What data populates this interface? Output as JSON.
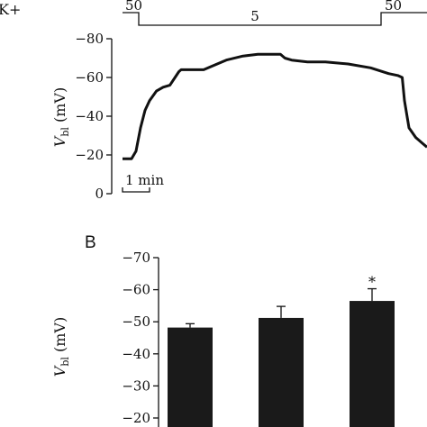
{
  "figure": {
    "panel_b": "B",
    "k_label": "K+",
    "protocol": {
      "left": "50",
      "middle": "5",
      "right": "50"
    },
    "scale_bar": "1 min"
  },
  "chart_data": [
    {
      "type": "line",
      "panel": "A",
      "ylabel": "Vbl (mV)",
      "ylim": [
        -80,
        0
      ],
      "yticks": [
        0,
        -20,
        -40,
        -60,
        -80
      ],
      "ytick_labels": [
        "0",
        "−20",
        "−40",
        "−60",
        "−80"
      ],
      "x_unit": "min",
      "xlim": [
        0,
        13.5
      ],
      "series": [
        {
          "x": [
            0,
            0.4,
            0.6,
            0.8,
            1.0,
            1.2,
            1.5,
            1.8,
            2.1,
            2.5,
            2.6,
            2.8,
            3.0,
            3.6,
            4.0,
            4.6,
            5.3,
            6.0,
            6.6,
            7.0,
            7.2,
            7.5,
            8.2,
            9.0,
            10.0,
            11.0,
            11.8,
            12.2,
            12.4,
            12.5,
            12.7,
            13.0,
            13.3,
            13.5
          ],
          "y": [
            -18,
            -18,
            -22,
            -34,
            -43,
            -48,
            -53,
            -55,
            -56,
            -63,
            -64,
            -64,
            -64,
            -64,
            -66,
            -69,
            -71,
            -72,
            -72,
            -72,
            -70,
            -69,
            -68,
            -68,
            -67,
            -65,
            -62,
            -61,
            -60,
            -48,
            -34,
            -29,
            -26,
            -24
          ]
        }
      ]
    },
    {
      "type": "bar",
      "panel": "B",
      "ylabel": "Vbl (mV)",
      "ylim": [
        -20,
        -70
      ],
      "yticks": [
        -70,
        -60,
        -50,
        -40,
        -30,
        -20
      ],
      "ytick_labels": [
        "−70",
        "−60",
        "−50",
        "−40",
        "−30",
        "−20"
      ],
      "values": [
        -48.2,
        -51.2,
        -56.5
      ],
      "errors": [
        1.2,
        3.6,
        3.8
      ],
      "significance": [
        "",
        "",
        "*"
      ]
    }
  ]
}
